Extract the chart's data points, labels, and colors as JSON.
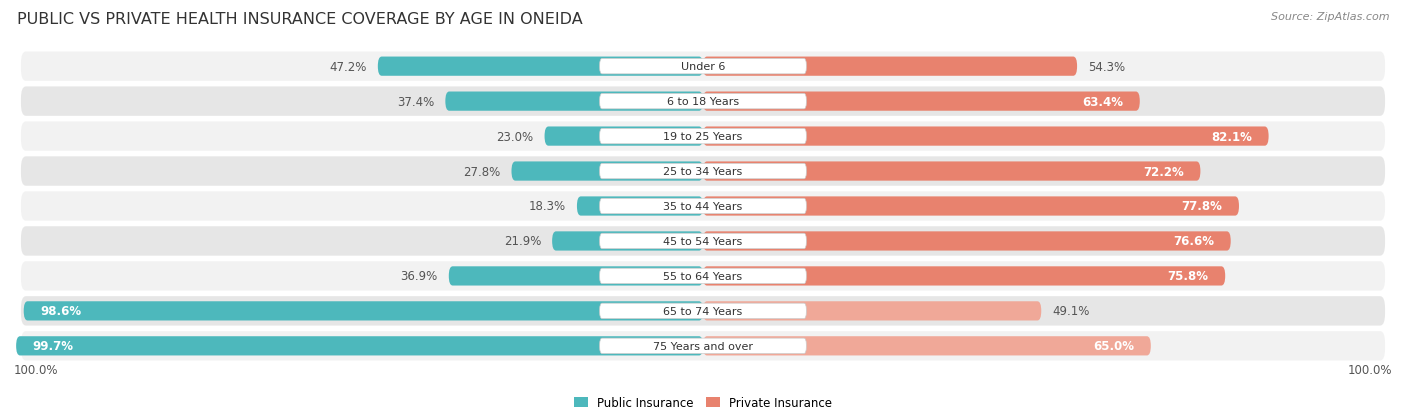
{
  "title": "PUBLIC VS PRIVATE HEALTH INSURANCE COVERAGE BY AGE IN ONEIDA",
  "source": "Source: ZipAtlas.com",
  "categories": [
    "Under 6",
    "6 to 18 Years",
    "19 to 25 Years",
    "25 to 34 Years",
    "35 to 44 Years",
    "45 to 54 Years",
    "55 to 64 Years",
    "65 to 74 Years",
    "75 Years and over"
  ],
  "public_values": [
    47.2,
    37.4,
    23.0,
    27.8,
    18.3,
    21.9,
    36.9,
    98.6,
    99.7
  ],
  "private_values": [
    54.3,
    63.4,
    82.1,
    72.2,
    77.8,
    76.6,
    75.8,
    49.1,
    65.0
  ],
  "public_color": "#4db8bc",
  "private_color": "#e8826e",
  "private_color_light": "#f0a898",
  "public_label": "Public Insurance",
  "private_label": "Private Insurance",
  "row_bg_color_light": "#f2f2f2",
  "row_bg_color_dark": "#e6e6e6",
  "max_value": 100.0,
  "title_fontsize": 11.5,
  "label_fontsize": 8.5,
  "value_fontsize": 8.5,
  "source_fontsize": 8,
  "background_color": "#ffffff"
}
